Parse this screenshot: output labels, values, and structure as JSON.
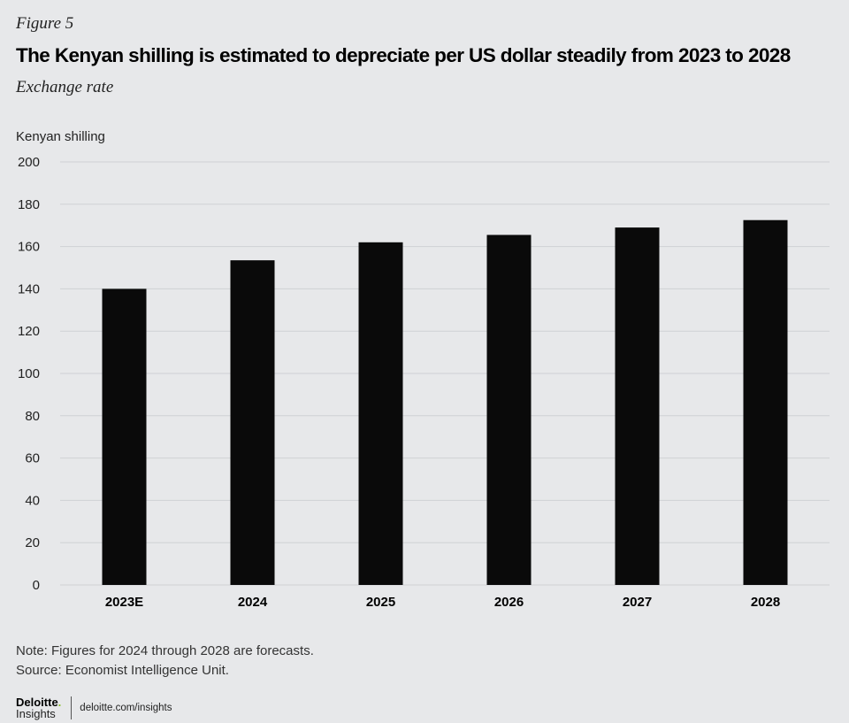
{
  "figure_label": "Figure 5",
  "title": "The Kenyan shilling is estimated to depreciate per US dollar steadily from 2023 to 2028",
  "subtitle": "Exchange rate",
  "chart_data": {
    "type": "bar",
    "ylabel": "Kenyan shilling",
    "categories": [
      "2023E",
      "2024",
      "2025",
      "2026",
      "2027",
      "2028"
    ],
    "values": [
      140,
      153.5,
      162,
      165.5,
      169,
      172.5
    ],
    "ylim": [
      0,
      200
    ],
    "yticks": [
      0,
      20,
      40,
      60,
      80,
      100,
      120,
      140,
      160,
      180,
      200
    ],
    "grid": true,
    "bar_color": "#0a0a0a",
    "grid_color": "#cfd1d4"
  },
  "notes": {
    "note": "Note: Figures for 2024 through 2028 are forecasts.",
    "source": "Source: Economist Intelligence Unit."
  },
  "footer": {
    "logo_word": "Deloitte",
    "logo_dot": ".",
    "logo_sub": "Insights",
    "site": "deloitte.com/insights"
  }
}
